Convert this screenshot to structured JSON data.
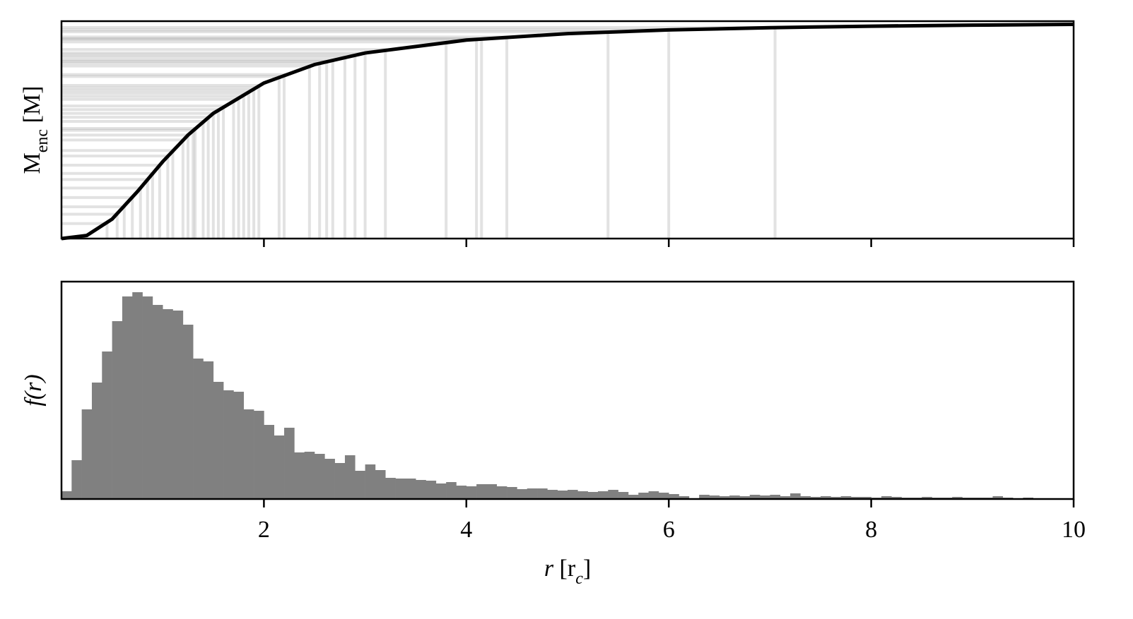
{
  "chart_data": [
    {
      "type": "line",
      "ylabel": [
        "M",
        "enc",
        " [M]"
      ],
      "xlim": [
        0,
        10
      ],
      "ylim": [
        0,
        1
      ],
      "color": "#000000",
      "x": [
        0,
        0.25,
        0.5,
        0.75,
        1,
        1.25,
        1.5,
        2,
        2.5,
        3,
        4,
        5,
        6,
        7,
        8,
        9,
        10
      ],
      "values": [
        0,
        0.0143,
        0.0894,
        0.216,
        0.3536,
        0.4761,
        0.576,
        0.7155,
        0.8004,
        0.8538,
        0.9131,
        0.9429,
        0.9597,
        0.9701,
        0.977,
        0.9818,
        0.9852
      ],
      "particles": {
        "color": "#a0a0a0",
        "r": [
          0.45,
          0.55,
          0.62,
          0.7,
          0.78,
          0.85,
          0.9,
          0.97,
          1.05,
          1.1,
          1.2,
          1.25,
          1.3,
          1.32,
          1.4,
          1.45,
          1.5,
          1.55,
          1.6,
          1.7,
          1.75,
          1.8,
          1.85,
          1.9,
          1.95,
          2.15,
          2.2,
          2.45,
          2.55,
          2.62,
          2.68,
          2.8,
          2.9,
          3.0,
          3.2,
          3.8,
          4.1,
          4.15,
          4.4,
          5.4,
          6.0,
          7.05
        ],
        "m": [
          0.0691,
          0.1119,
          0.1463,
          0.1886,
          0.2326,
          0.2717,
          0.2994,
          0.3375,
          0.3797,
          0.4051,
          0.4534,
          0.4761,
          0.498,
          0.5065,
          0.5388,
          0.5579,
          0.576,
          0.5933,
          0.6098,
          0.6403,
          0.6544,
          0.6681,
          0.6808,
          0.6929,
          0.7045,
          0.7454,
          0.7546,
          0.7937,
          0.8069,
          0.8153,
          0.8224,
          0.8353,
          0.845,
          0.8538,
          0.8696,
          0.9045,
          0.9169,
          0.9189,
          0.9272,
          0.9507,
          0.9597,
          0.9706
        ]
      }
    },
    {
      "type": "histogram",
      "ylabel": "f(r)",
      "xlabel": [
        "r",
        " [r",
        "c",
        "]"
      ],
      "xlim": [
        0,
        10
      ],
      "ylim": [
        0,
        308
      ],
      "color": "#808080",
      "xticks": [
        2,
        4,
        6,
        8,
        10
      ],
      "bins": [
        0,
        0.1,
        0.2,
        0.3,
        0.4,
        0.5,
        0.6,
        0.7,
        0.8,
        0.9,
        1,
        1.1,
        1.2,
        1.3,
        1.4,
        1.5,
        1.6,
        1.7,
        1.8,
        1.9,
        2,
        2.1,
        2.2,
        2.3,
        2.4,
        2.5,
        2.6,
        2.7,
        2.8,
        2.9,
        3,
        3.1,
        3.2,
        3.3,
        3.4,
        3.5,
        3.6,
        3.7,
        3.8,
        3.9,
        4,
        4.1,
        4.2,
        4.3,
        4.4,
        4.5,
        4.6,
        4.7,
        4.8,
        4.9,
        5,
        5.1,
        5.2,
        5.3,
        5.4,
        5.5,
        5.6,
        5.7,
        5.8,
        5.9,
        6,
        6.1,
        6.2,
        6.3,
        6.4,
        6.5,
        6.6,
        6.7,
        6.8,
        6.9,
        7,
        7.1,
        7.2,
        7.3,
        7.4,
        7.5,
        7.6,
        7.7,
        7.8,
        7.9,
        8,
        8.1,
        8.2,
        8.3,
        8.4,
        8.5,
        8.6,
        8.7,
        8.8,
        8.9,
        9,
        9.1,
        9.2,
        9.3,
        9.4,
        9.5,
        9.6,
        9.7,
        9.8,
        9.9,
        10
      ],
      "values": [
        11,
        55,
        127,
        165,
        209,
        252,
        287,
        293,
        287,
        275,
        269,
        267,
        247,
        199,
        195,
        166,
        154,
        152,
        127,
        125,
        105,
        90,
        101,
        66,
        67,
        64,
        57,
        51,
        62,
        40,
        49,
        41,
        30,
        29,
        29,
        27,
        26,
        22,
        24,
        19,
        18,
        21,
        21,
        18,
        17,
        14,
        15,
        15,
        13,
        12,
        13,
        11,
        10,
        11,
        13,
        10,
        6,
        9,
        11,
        9,
        7,
        4,
        1,
        6,
        5,
        4,
        5,
        4,
        6,
        5,
        6,
        4,
        8,
        4,
        3,
        4,
        3,
        4,
        3,
        3,
        2,
        4,
        3,
        2,
        2,
        3,
        2,
        2,
        3,
        2,
        2,
        2,
        4,
        2,
        1,
        2,
        1,
        1,
        1,
        1
      ]
    }
  ]
}
